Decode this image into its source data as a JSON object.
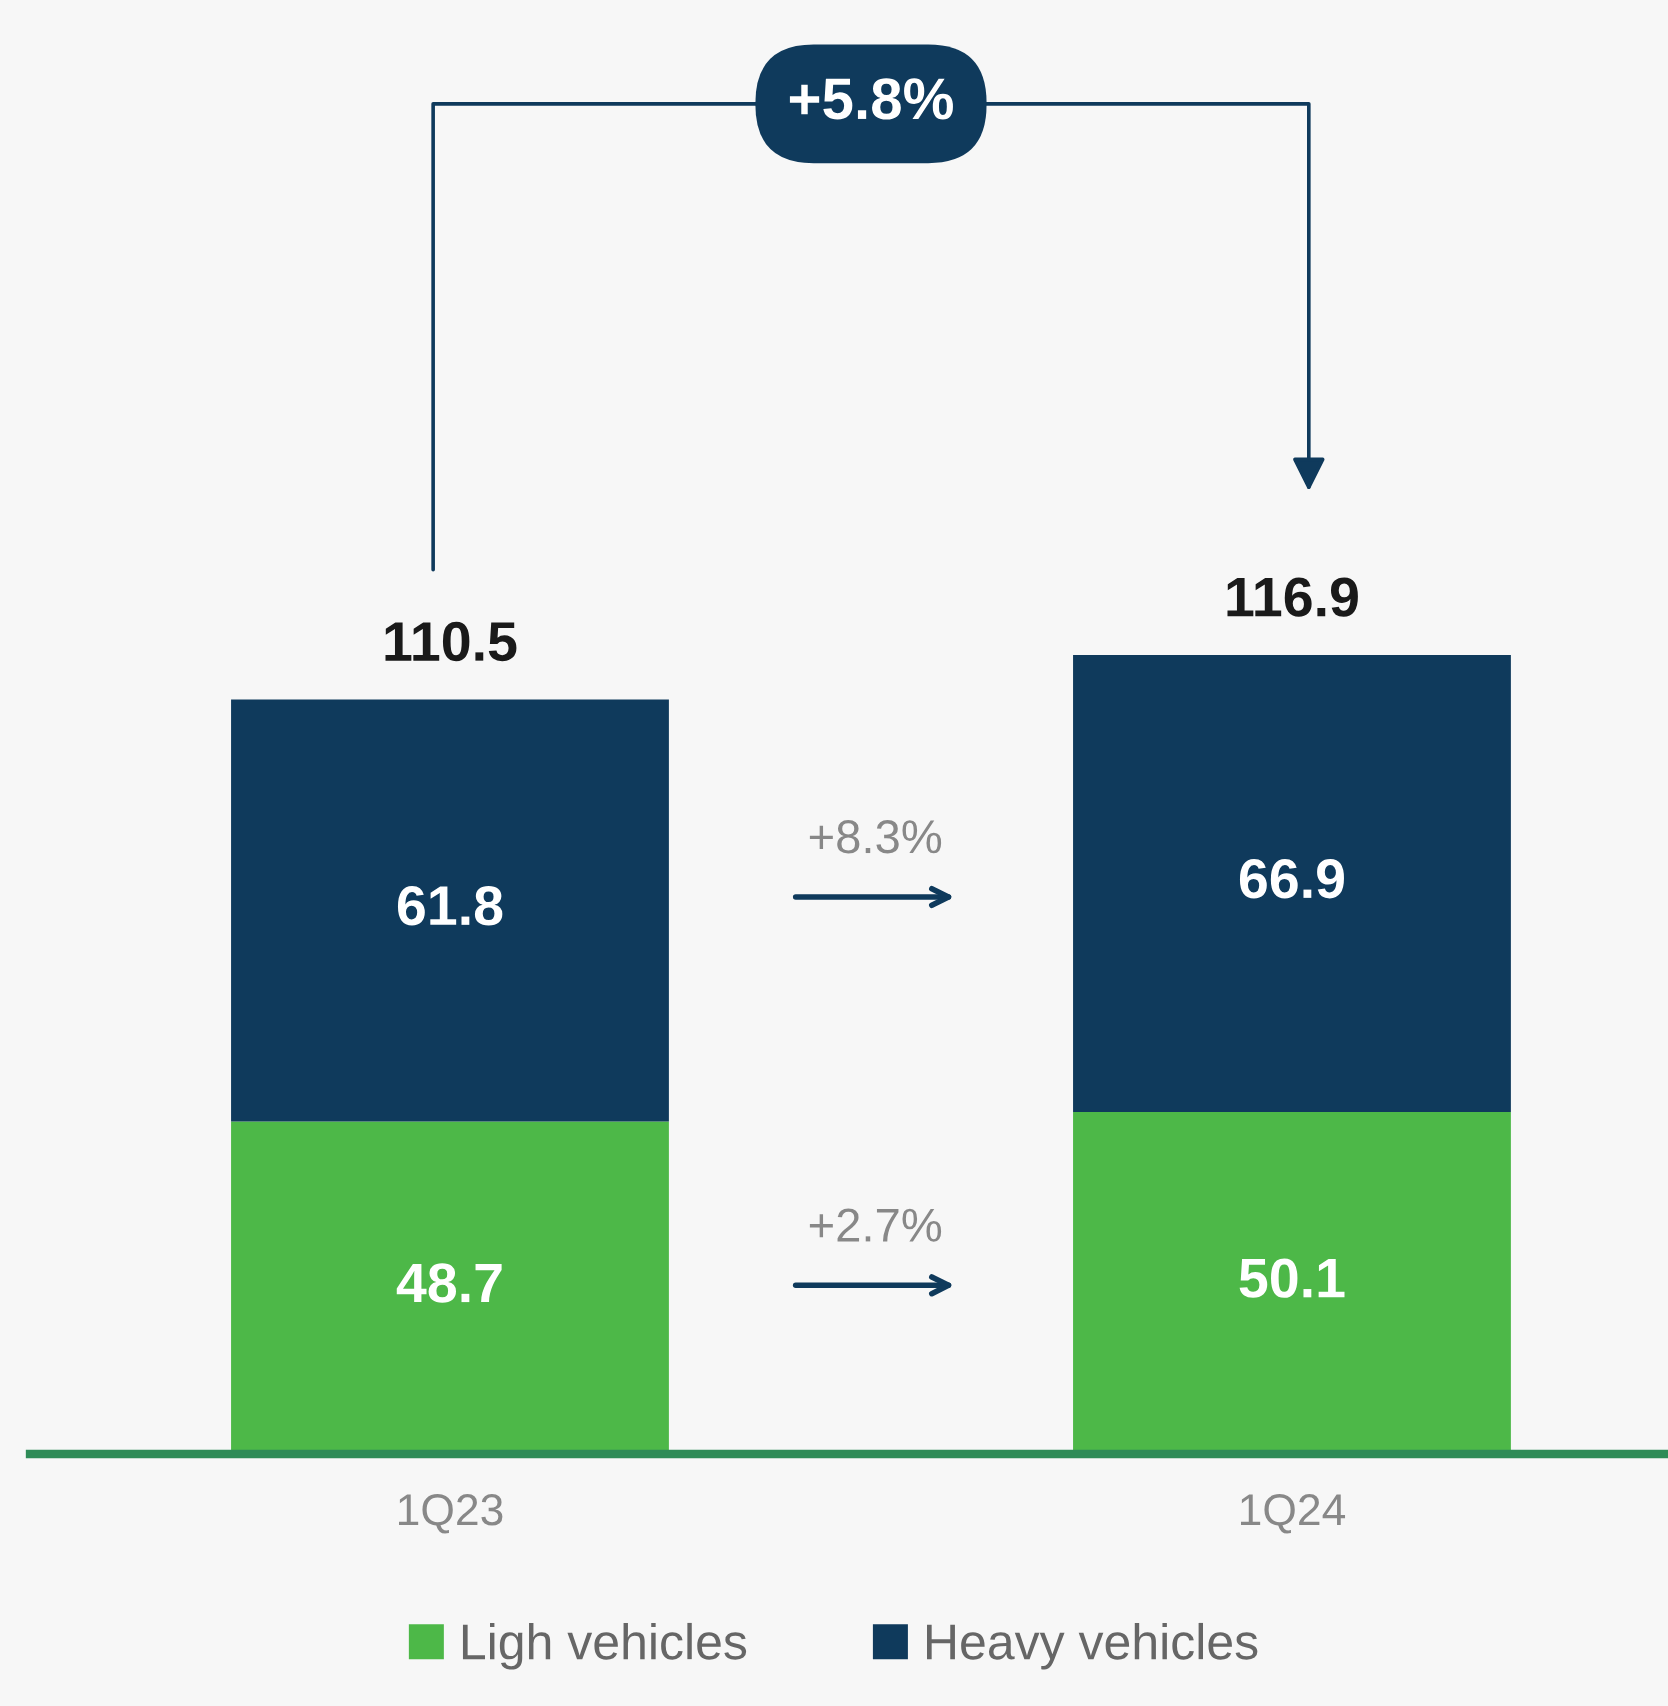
{
  "chart_data": {
    "type": "bar",
    "stacked": true,
    "categories": [
      "1Q23",
      "1Q24"
    ],
    "series": [
      {
        "name": "Ligh vehicles",
        "color": "#4db848",
        "values": [
          48.7,
          50.1
        ]
      },
      {
        "name": "Heavy vehicles",
        "color": "#0f3a5c",
        "values": [
          61.8,
          66.9
        ]
      }
    ],
    "data_labels": true,
    "totals": [
      "110.5",
      "116.9"
    ],
    "annotations": [
      "+5.8%",
      "+8.3%",
      "+2.7%"
    ],
    "legend": "bottom",
    "grid": false
  }
}
